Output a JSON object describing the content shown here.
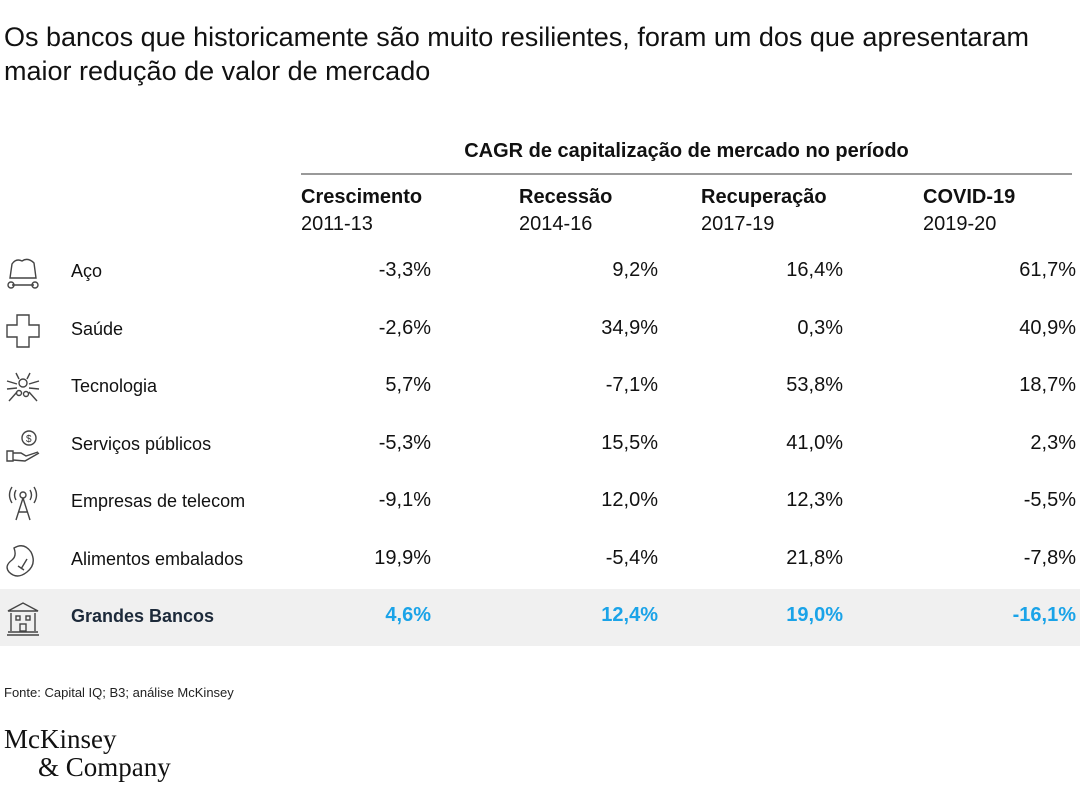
{
  "title": "Os bancos que historicamente são muito resilientes, foram um dos que apresentaram maior redução de valor de mercado",
  "chart_data": {
    "type": "table",
    "super_header": "CAGR de capitalização de mercado no período",
    "columns": [
      {
        "name": "Crescimento",
        "period": "2011-13"
      },
      {
        "name": "Recessão",
        "period": "2014-16"
      },
      {
        "name": "Recuperação",
        "period": "2017-19"
      },
      {
        "name": "COVID-19",
        "period": "2019-20"
      }
    ],
    "rows": [
      {
        "label": "Aço",
        "icon": "mining-cart-icon",
        "values": [
          "-3,3%",
          "9,2%",
          "16,4%",
          "61,7%"
        ]
      },
      {
        "label": "Saúde",
        "icon": "medical-cross-icon",
        "values": [
          "-2,6%",
          "34,9%",
          "0,3%",
          "40,9%"
        ]
      },
      {
        "label": "Tecnologia",
        "icon": "chip-icon",
        "values": [
          "5,7%",
          "-7,1%",
          "53,8%",
          "18,7%"
        ]
      },
      {
        "label": "Serviços públicos",
        "icon": "hand-coin-icon",
        "values": [
          "-5,3%",
          "15,5%",
          "41,0%",
          "2,3%"
        ]
      },
      {
        "label": "Empresas de telecom",
        "icon": "antenna-tower-icon",
        "values": [
          "-9,1%",
          "12,0%",
          "12,3%",
          "-5,5%"
        ]
      },
      {
        "label": "Alimentos embalados",
        "icon": "food-icon",
        "values": [
          "19,9%",
          "-5,4%",
          "21,8%",
          "-7,8%"
        ]
      },
      {
        "label": "Grandes Bancos",
        "icon": "bank-icon",
        "values": [
          "4,6%",
          "12,4%",
          "19,0%",
          "-16,1%"
        ],
        "highlight": true
      }
    ],
    "highlight_color": "#1aa3e8",
    "highlight_bg": "#f0f0f0"
  },
  "source": "Fonte: Capital IQ; B3; análise McKinsey",
  "logo": {
    "line1": "McKinsey",
    "line2": "& Company"
  }
}
